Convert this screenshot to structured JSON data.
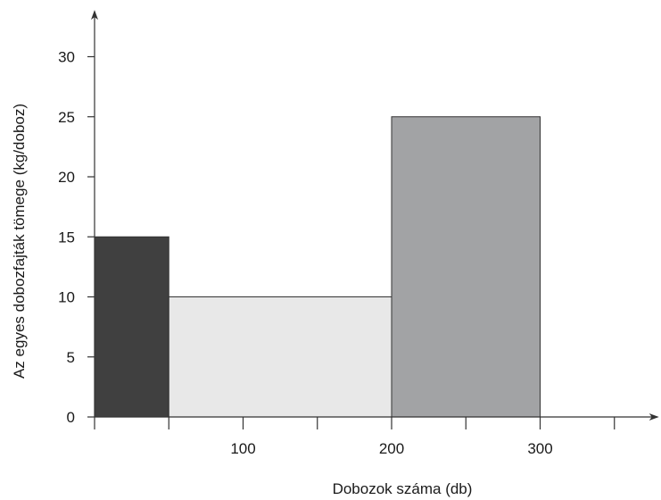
{
  "chart_data": {
    "type": "bar",
    "title": "",
    "xlabel": "Dobozok száma (db)",
    "ylabel": "Az egyes dobozfajták tömege (kg/doboz)",
    "xlim": [
      0,
      380
    ],
    "ylim": [
      0,
      33
    ],
    "grid": false,
    "legend": "none",
    "x_ticks": [
      0,
      50,
      100,
      150,
      200,
      250,
      300,
      350
    ],
    "x_tick_labels": [
      {
        "value": 100,
        "label": "100"
      },
      {
        "value": 200,
        "label": "200"
      },
      {
        "value": 300,
        "label": "300"
      }
    ],
    "y_ticks": [
      0,
      5,
      10,
      15,
      20,
      25,
      30
    ],
    "y_tick_labels": [
      "0",
      "5",
      "10",
      "15",
      "20",
      "25",
      "30"
    ],
    "bars": [
      {
        "x_start": 0,
        "x_end": 50,
        "value": 15,
        "color": "#404040"
      },
      {
        "x_start": 50,
        "x_end": 200,
        "value": 10,
        "color": "#e8e8e8"
      },
      {
        "x_start": 200,
        "x_end": 300,
        "value": 25,
        "color": "#a2a3a5"
      }
    ]
  }
}
